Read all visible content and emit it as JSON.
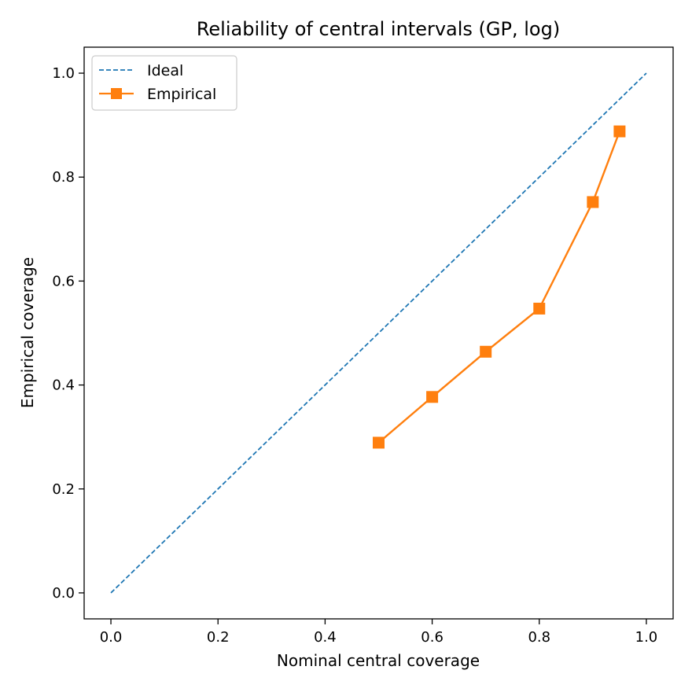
{
  "chart_data": {
    "type": "line",
    "title": "Reliability of central intervals (GP, log)",
    "xlabel": "Nominal central coverage",
    "ylabel": "Empirical coverage",
    "xlim": [
      -0.05,
      1.05
    ],
    "ylim": [
      -0.05,
      1.05
    ],
    "xticks": [
      0.0,
      0.2,
      0.4,
      0.6,
      0.8,
      1.0
    ],
    "yticks": [
      0.0,
      0.2,
      0.4,
      0.6,
      0.8,
      1.0
    ],
    "xtick_labels": [
      "0.0",
      "0.2",
      "0.4",
      "0.6",
      "0.8",
      "1.0"
    ],
    "ytick_labels": [
      "0.0",
      "0.2",
      "0.4",
      "0.6",
      "0.8",
      "1.0"
    ],
    "grid": false,
    "legend_position": "top-left",
    "series": [
      {
        "name": "Ideal",
        "style": "dashed",
        "color": "#1f77b4",
        "marker": "none",
        "x": [
          0.0,
          1.0
        ],
        "y": [
          0.0,
          1.0
        ]
      },
      {
        "name": "Empirical",
        "style": "solid",
        "color": "#ff7f0e",
        "marker": "square",
        "x": [
          0.5,
          0.6,
          0.7,
          0.8,
          0.9,
          0.95
        ],
        "y": [
          0.289,
          0.377,
          0.464,
          0.547,
          0.752,
          0.888
        ]
      }
    ]
  }
}
